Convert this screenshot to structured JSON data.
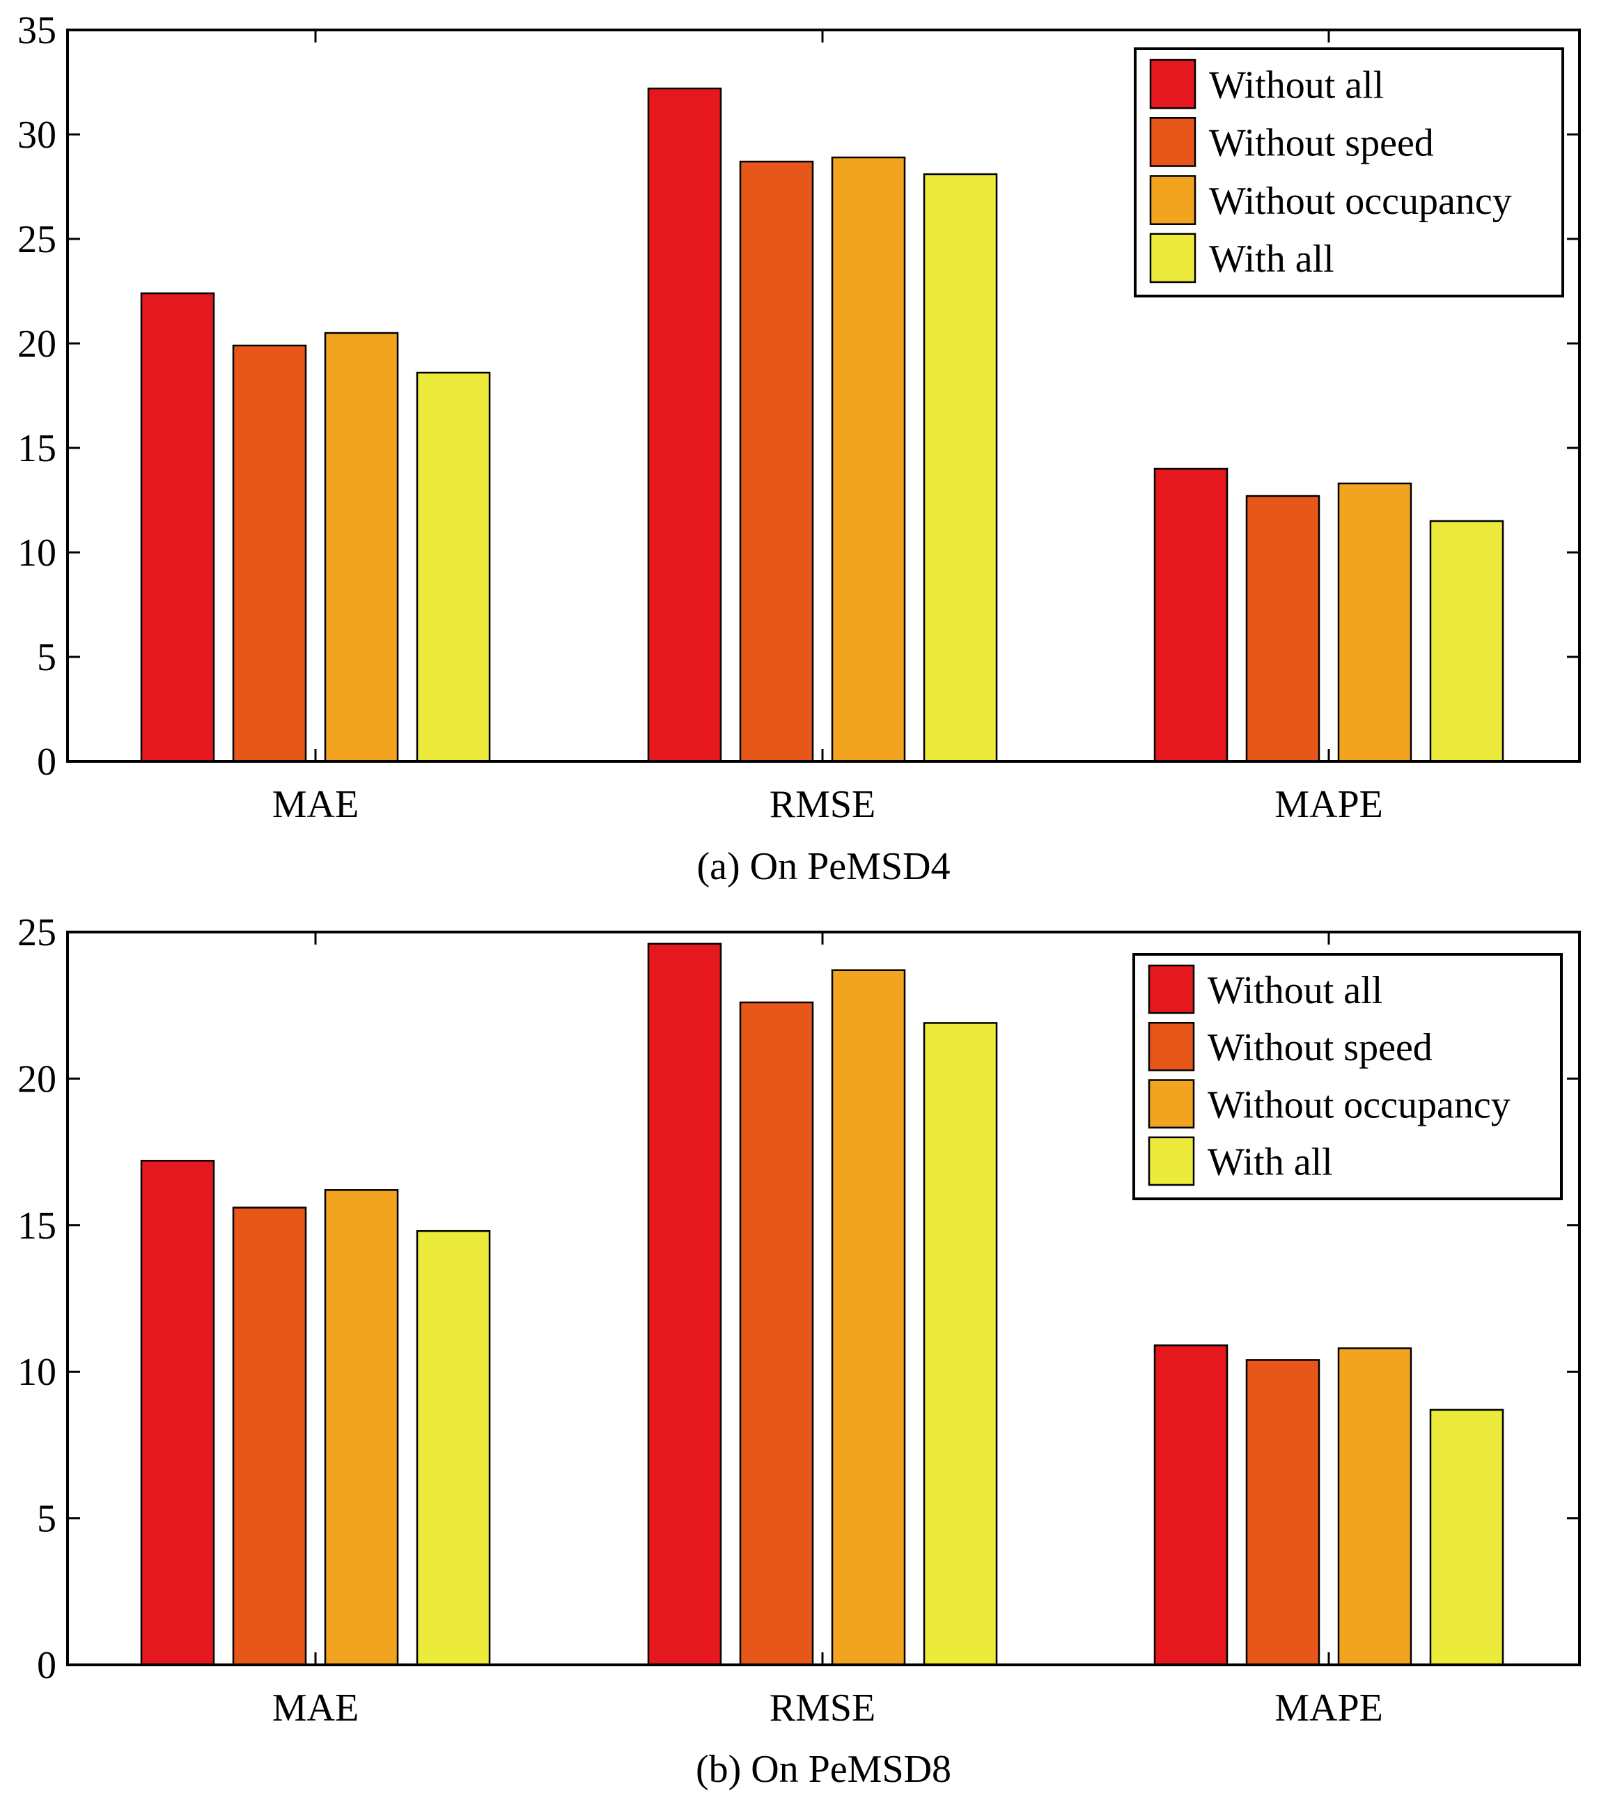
{
  "chart_data": [
    {
      "type": "bar",
      "caption": "(a) On PeMSD4",
      "categories": [
        "MAE",
        "RMSE",
        "MAPE"
      ],
      "series": [
        {
          "name": "Without all",
          "color": "#e4181d",
          "values": [
            22.4,
            32.2,
            14.0
          ]
        },
        {
          "name": "Without speed",
          "color": "#e8571a",
          "values": [
            19.9,
            28.7,
            12.7
          ]
        },
        {
          "name": "Without occupancy",
          "color": "#f2a31f",
          "values": [
            20.5,
            28.9,
            13.3
          ]
        },
        {
          "name": "With all",
          "color": "#ecea3a",
          "values": [
            18.6,
            28.1,
            11.5
          ]
        }
      ],
      "yticks": [
        "0",
        "5",
        "10",
        "15",
        "20",
        "25",
        "30",
        "35"
      ],
      "ylim": [
        0,
        35
      ],
      "legend_position": "top-right",
      "xlabel": "",
      "ylabel": ""
    },
    {
      "type": "bar",
      "caption": "(b) On PeMSD8",
      "categories": [
        "MAE",
        "RMSE",
        "MAPE"
      ],
      "series": [
        {
          "name": "Without all",
          "color": "#e4181d",
          "values": [
            17.2,
            24.6,
            10.9
          ]
        },
        {
          "name": "Without speed",
          "color": "#e8571a",
          "values": [
            15.6,
            22.6,
            10.4
          ]
        },
        {
          "name": "Without occupancy",
          "color": "#f2a31f",
          "values": [
            16.2,
            23.7,
            10.8
          ]
        },
        {
          "name": "With all",
          "color": "#ecea3a",
          "values": [
            14.8,
            21.9,
            8.7
          ]
        }
      ],
      "yticks": [
        "0",
        "5",
        "10",
        "15",
        "20",
        "25"
      ],
      "ylim": [
        0,
        25
      ],
      "legend_position": "top-right",
      "xlabel": "",
      "ylabel": ""
    }
  ]
}
